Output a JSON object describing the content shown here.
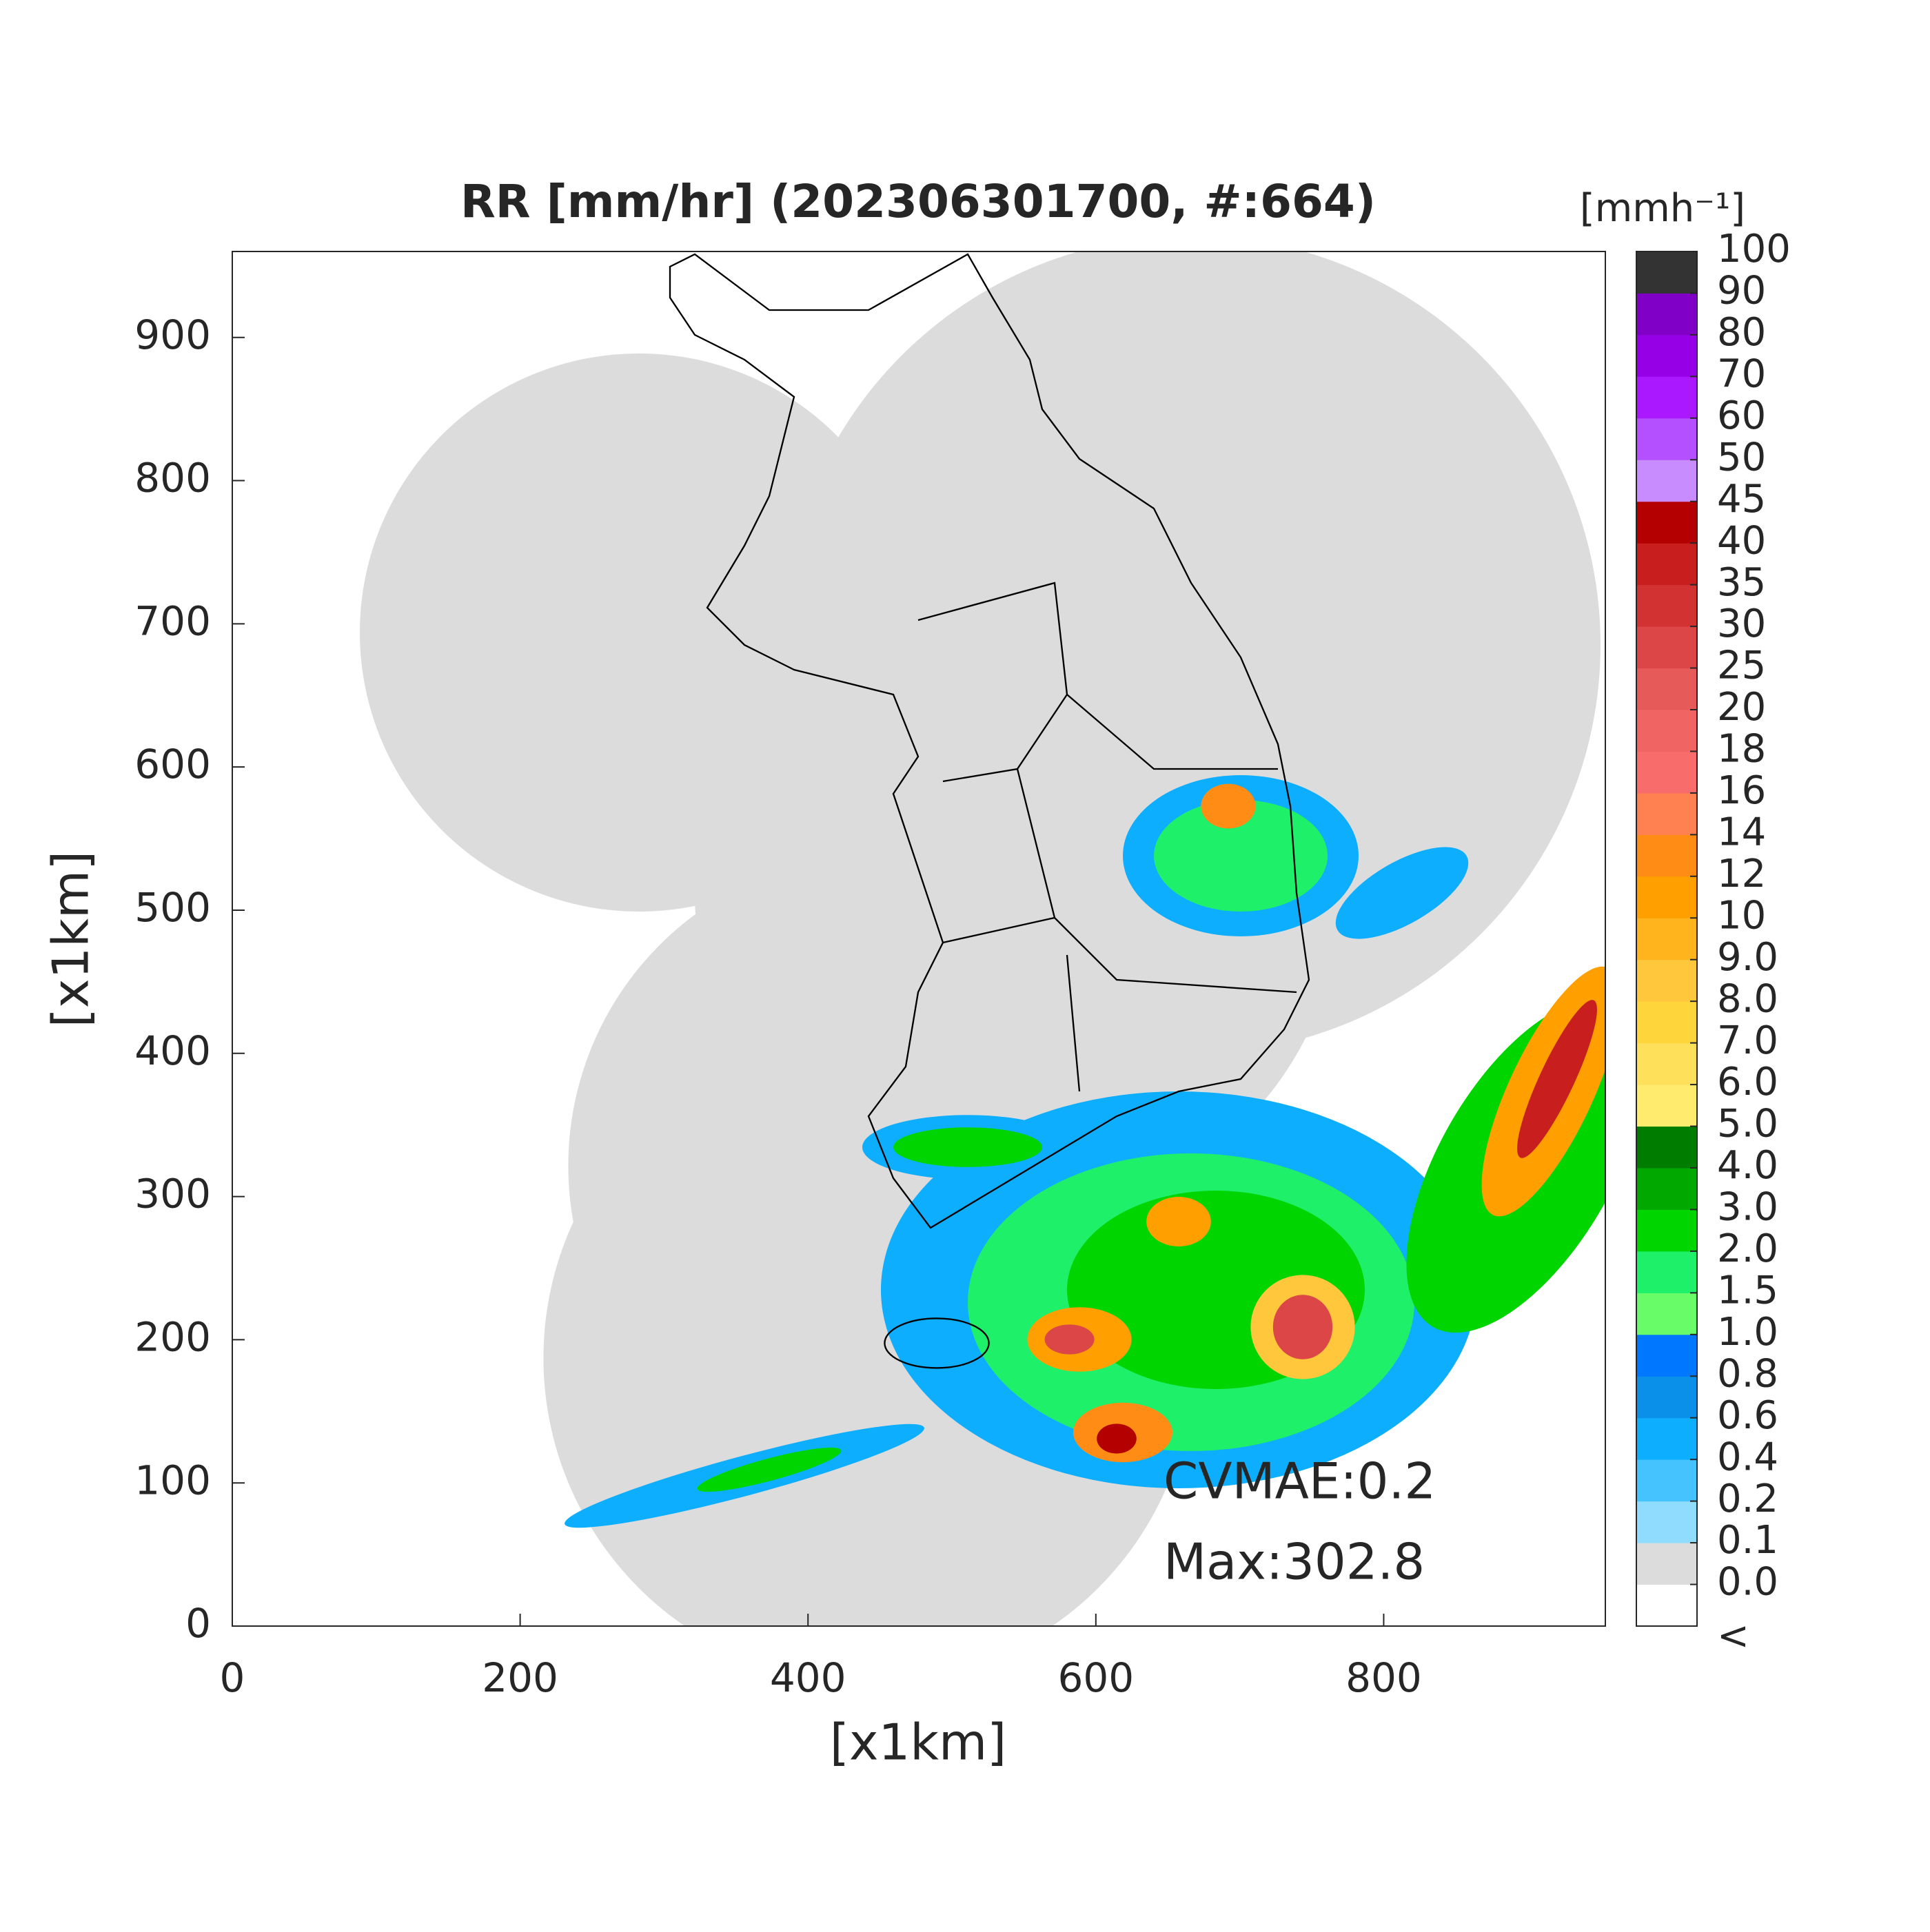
{
  "chart_data": {
    "type": "map",
    "title": "RR [mm/hr] (202306301700, #:664)",
    "xlabel": "[x1km]",
    "ylabel": "[x1km]",
    "xlim": [
      0,
      954
    ],
    "ylim": [
      0,
      960
    ],
    "xticks": [
      0,
      200,
      400,
      600,
      800
    ],
    "yticks": [
      0,
      100,
      200,
      300,
      400,
      500,
      600,
      700,
      800,
      900
    ],
    "annotations": [
      "CVMAE:0.2",
      "Max:302.8"
    ],
    "colorbar": {
      "label": "[mmh⁻¹]",
      "under_label": "<",
      "levels": [
        {
          "value": 0,
          "label": "0.0"
        },
        0.1,
        0.2,
        0.4,
        0.6,
        0.8,
        {
          "value": 1,
          "label": "1.0"
        },
        1.5,
        {
          "value": 2,
          "label": "2.0"
        },
        {
          "value": 3,
          "label": "3.0"
        },
        {
          "value": 4,
          "label": "4.0"
        },
        {
          "value": 5,
          "label": "5.0"
        },
        {
          "value": 6,
          "label": "6.0"
        },
        {
          "value": 7,
          "label": "7.0"
        },
        {
          "value": 8,
          "label": "8.0"
        },
        {
          "value": 9,
          "label": "9.0"
        },
        10,
        12,
        14,
        16,
        18,
        20,
        25,
        30,
        35,
        40,
        45,
        50,
        60,
        70,
        80,
        90,
        100
      ],
      "colors": [
        "#ffffff",
        "#dcdcdc",
        "#8fdcff",
        "#44c3ff",
        "#0eaeff",
        "#0a90e8",
        "#0077ff",
        "#69fc69",
        "#1ef06a",
        "#00d500",
        "#00a800",
        "#007d00",
        "#ffeb6e",
        "#ffe05a",
        "#ffd53c",
        "#ffc83c",
        "#ffb41e",
        "#ffa000",
        "#ff8c14",
        "#ff8050",
        "#f86c6c",
        "#f06464",
        "#e65a5a",
        "#dc4646",
        "#d23232",
        "#c81e1e",
        "#b40000",
        "#c88cff",
        "#b450ff",
        "#aa18ff",
        "#9600e6",
        "#8000c8",
        "#333333"
      ]
    }
  }
}
